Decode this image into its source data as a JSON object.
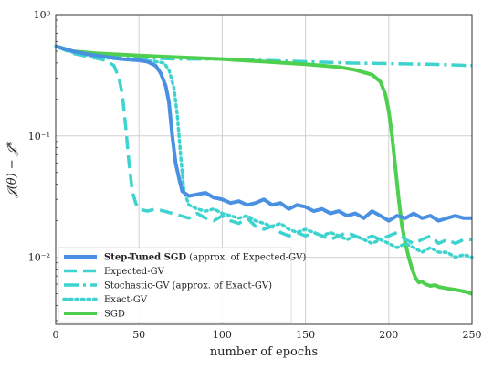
{
  "chart_data": {
    "type": "line",
    "title": "",
    "xlabel": "number of epochs",
    "ylabel": "𝒥(θ) − 𝒥*",
    "xlim": [
      0,
      250
    ],
    "ylim": [
      0.0028,
      1.0
    ],
    "yscale": "log",
    "grid": true,
    "legend_position": "bottom-left",
    "x_ticks": [
      "0",
      "50",
      "100",
      "150",
      "200",
      "250"
    ],
    "y_ticks": [
      {
        "value": 1,
        "label": "10⁰"
      },
      {
        "value": 0.1,
        "label": "10⁻¹"
      },
      {
        "value": 0.01,
        "label": "10⁻²"
      }
    ],
    "series": [
      {
        "name": "Step-Tuned SGD",
        "name_suffix": "(approx. of Expected-GV)",
        "color": "#4a90e2",
        "style": "solid",
        "width": 4,
        "points": [
          [
            0,
            0.55
          ],
          [
            10,
            0.5
          ],
          [
            20,
            0.47
          ],
          [
            30,
            0.45
          ],
          [
            40,
            0.43
          ],
          [
            50,
            0.42
          ],
          [
            55,
            0.41
          ],
          [
            60,
            0.38
          ],
          [
            63,
            0.33
          ],
          [
            66,
            0.26
          ],
          [
            68,
            0.19
          ],
          [
            70,
            0.1
          ],
          [
            72,
            0.06
          ],
          [
            74,
            0.045
          ],
          [
            76,
            0.035
          ],
          [
            80,
            0.032
          ],
          [
            85,
            0.033
          ],
          [
            90,
            0.034
          ],
          [
            95,
            0.031
          ],
          [
            100,
            0.03
          ],
          [
            105,
            0.028
          ],
          [
            110,
            0.029
          ],
          [
            115,
            0.027
          ],
          [
            120,
            0.028
          ],
          [
            125,
            0.03
          ],
          [
            130,
            0.027
          ],
          [
            135,
            0.028
          ],
          [
            140,
            0.025
          ],
          [
            145,
            0.027
          ],
          [
            150,
            0.026
          ],
          [
            155,
            0.024
          ],
          [
            160,
            0.025
          ],
          [
            165,
            0.023
          ],
          [
            170,
            0.024
          ],
          [
            175,
            0.022
          ],
          [
            180,
            0.023
          ],
          [
            185,
            0.021
          ],
          [
            190,
            0.024
          ],
          [
            195,
            0.022
          ],
          [
            200,
            0.02
          ],
          [
            205,
            0.022
          ],
          [
            210,
            0.021
          ],
          [
            215,
            0.023
          ],
          [
            220,
            0.021
          ],
          [
            225,
            0.022
          ],
          [
            230,
            0.02
          ],
          [
            235,
            0.021
          ],
          [
            240,
            0.022
          ],
          [
            245,
            0.021
          ],
          [
            250,
            0.021
          ]
        ]
      },
      {
        "name": "Expected-GV",
        "color": "#3fd3cf",
        "style": "dashed",
        "width": 3.5,
        "points": [
          [
            0,
            0.55
          ],
          [
            10,
            0.48
          ],
          [
            20,
            0.45
          ],
          [
            30,
            0.42
          ],
          [
            35,
            0.38
          ],
          [
            38,
            0.3
          ],
          [
            40,
            0.22
          ],
          [
            42,
            0.12
          ],
          [
            44,
            0.06
          ],
          [
            46,
            0.035
          ],
          [
            48,
            0.028
          ],
          [
            50,
            0.025
          ],
          [
            55,
            0.024
          ],
          [
            60,
            0.025
          ],
          [
            65,
            0.024
          ],
          [
            70,
            0.023
          ],
          [
            75,
            0.022
          ],
          [
            80,
            0.021
          ],
          [
            85,
            0.023
          ],
          [
            90,
            0.021
          ],
          [
            95,
            0.02
          ],
          [
            100,
            0.022
          ],
          [
            105,
            0.02
          ],
          [
            110,
            0.019
          ],
          [
            115,
            0.021
          ],
          [
            120,
            0.018
          ],
          [
            125,
            0.017
          ],
          [
            130,
            0.018
          ],
          [
            135,
            0.016
          ],
          [
            140,
            0.015
          ],
          [
            145,
            0.016
          ],
          [
            150,
            0.015
          ],
          [
            155,
            0.016
          ],
          [
            160,
            0.015
          ],
          [
            165,
            0.014
          ],
          [
            170,
            0.015
          ],
          [
            175,
            0.016
          ],
          [
            180,
            0.015
          ],
          [
            185,
            0.014
          ],
          [
            190,
            0.015
          ],
          [
            195,
            0.014
          ],
          [
            200,
            0.015
          ],
          [
            205,
            0.016
          ],
          [
            210,
            0.014
          ],
          [
            215,
            0.013
          ],
          [
            220,
            0.014
          ],
          [
            225,
            0.015
          ],
          [
            230,
            0.013
          ],
          [
            235,
            0.014
          ],
          [
            240,
            0.013
          ],
          [
            245,
            0.014
          ],
          [
            250,
            0.014
          ]
        ]
      },
      {
        "name": "Stochastic-GV",
        "name_suffix": "(approx. of Exact-GV)",
        "color": "#3fd3cf",
        "style": "dashdot",
        "width": 3.5,
        "points": [
          [
            0,
            0.55
          ],
          [
            10,
            0.49
          ],
          [
            25,
            0.46
          ],
          [
            50,
            0.44
          ],
          [
            75,
            0.43
          ],
          [
            100,
            0.43
          ],
          [
            125,
            0.42
          ],
          [
            150,
            0.41
          ],
          [
            175,
            0.4
          ],
          [
            200,
            0.395
          ],
          [
            225,
            0.39
          ],
          [
            250,
            0.38
          ]
        ]
      },
      {
        "name": "Exact-GV",
        "color": "#3fd3cf",
        "style": "dotted",
        "width": 3.5,
        "points": [
          [
            0,
            0.55
          ],
          [
            10,
            0.49
          ],
          [
            20,
            0.46
          ],
          [
            30,
            0.44
          ],
          [
            40,
            0.43
          ],
          [
            50,
            0.42
          ],
          [
            60,
            0.41
          ],
          [
            65,
            0.4
          ],
          [
            68,
            0.35
          ],
          [
            71,
            0.25
          ],
          [
            73,
            0.15
          ],
          [
            75,
            0.07
          ],
          [
            77,
            0.035
          ],
          [
            80,
            0.027
          ],
          [
            85,
            0.025
          ],
          [
            90,
            0.024
          ],
          [
            95,
            0.025
          ],
          [
            100,
            0.023
          ],
          [
            105,
            0.022
          ],
          [
            110,
            0.021
          ],
          [
            115,
            0.022
          ],
          [
            120,
            0.02
          ],
          [
            125,
            0.019
          ],
          [
            130,
            0.018
          ],
          [
            135,
            0.019
          ],
          [
            140,
            0.017
          ],
          [
            145,
            0.016
          ],
          [
            150,
            0.017
          ],
          [
            155,
            0.016
          ],
          [
            160,
            0.015
          ],
          [
            165,
            0.016
          ],
          [
            170,
            0.015
          ],
          [
            175,
            0.014
          ],
          [
            180,
            0.015
          ],
          [
            185,
            0.014
          ],
          [
            190,
            0.013
          ],
          [
            195,
            0.014
          ],
          [
            200,
            0.013
          ],
          [
            205,
            0.012
          ],
          [
            210,
            0.013
          ],
          [
            215,
            0.012
          ],
          [
            220,
            0.011
          ],
          [
            225,
            0.012
          ],
          [
            230,
            0.011
          ],
          [
            235,
            0.011
          ],
          [
            240,
            0.01
          ],
          [
            245,
            0.0105
          ],
          [
            250,
            0.01
          ]
        ]
      },
      {
        "name": "SGD",
        "color": "#4fcf4f",
        "style": "solid",
        "width": 4,
        "points": [
          [
            0,
            0.55
          ],
          [
            10,
            0.5
          ],
          [
            25,
            0.48
          ],
          [
            50,
            0.46
          ],
          [
            75,
            0.445
          ],
          [
            100,
            0.43
          ],
          [
            125,
            0.41
          ],
          [
            150,
            0.39
          ],
          [
            170,
            0.37
          ],
          [
            180,
            0.35
          ],
          [
            190,
            0.32
          ],
          [
            195,
            0.28
          ],
          [
            198,
            0.22
          ],
          [
            200,
            0.16
          ],
          [
            202,
            0.1
          ],
          [
            204,
            0.055
          ],
          [
            206,
            0.03
          ],
          [
            208,
            0.018
          ],
          [
            210,
            0.013
          ],
          [
            212,
            0.01
          ],
          [
            214,
            0.008
          ],
          [
            216,
            0.0068
          ],
          [
            218,
            0.0062
          ],
          [
            220,
            0.0063
          ],
          [
            222,
            0.006
          ],
          [
            225,
            0.0058
          ],
          [
            228,
            0.0059
          ],
          [
            230,
            0.0057
          ],
          [
            233,
            0.0056
          ],
          [
            236,
            0.0055
          ],
          [
            240,
            0.0054
          ],
          [
            243,
            0.0053
          ],
          [
            246,
            0.0052
          ],
          [
            248,
            0.0051
          ],
          [
            250,
            0.005
          ]
        ]
      }
    ]
  }
}
